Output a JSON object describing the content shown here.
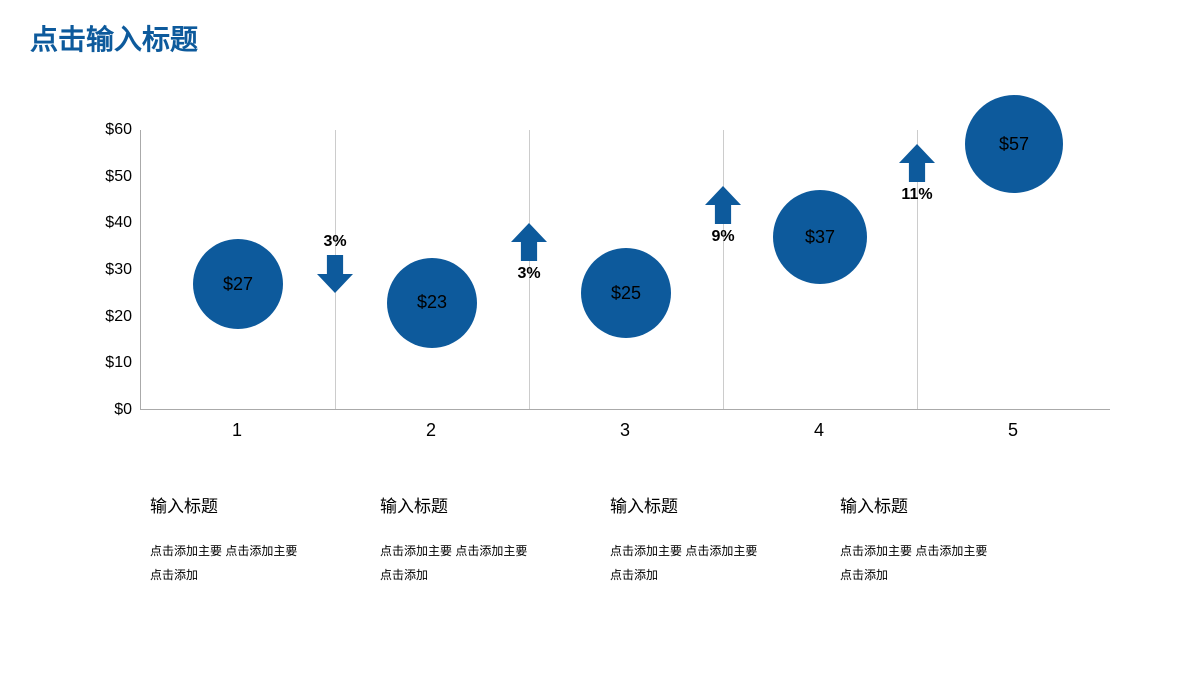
{
  "title": "点击输入标题",
  "title_color": "#0d5a9c",
  "chart": {
    "type": "bubble",
    "background_color": "#ffffff",
    "grid_color": "#cccccc",
    "axis_color": "#aaaaaa",
    "y_axis": {
      "min": 0,
      "max": 60,
      "step": 10,
      "prefix": "$",
      "ticks": [
        "$0",
        "$10",
        "$20",
        "$30",
        "$40",
        "$50",
        "$60"
      ]
    },
    "x_axis": {
      "categories": [
        "1",
        "2",
        "3",
        "4",
        "5"
      ]
    },
    "bubble_color": "#0d5a9c",
    "bubbles": [
      {
        "x": 1,
        "value": 27,
        "label": "$27",
        "radius": 45
      },
      {
        "x": 2,
        "value": 23,
        "label": "$23",
        "radius": 45
      },
      {
        "x": 3,
        "value": 25,
        "label": "$25",
        "radius": 45
      },
      {
        "x": 4,
        "value": 37,
        "label": "$37",
        "radius": 47
      },
      {
        "x": 5,
        "value": 57,
        "label": "$57",
        "radius": 49
      }
    ],
    "arrows": [
      {
        "between": 1,
        "direction": "down",
        "label": "3%",
        "label_pos": "above",
        "y": 38
      },
      {
        "between": 2,
        "direction": "up",
        "label": "3%",
        "label_pos": "below",
        "y": 40
      },
      {
        "between": 3,
        "direction": "up",
        "label": "9%",
        "label_pos": "below",
        "y": 48
      },
      {
        "between": 4,
        "direction": "up",
        "label": "11%",
        "label_pos": "below",
        "y": 57
      }
    ],
    "arrow_color": "#0d5a9c",
    "arrow_width": 36,
    "arrow_height": 38
  },
  "captions": [
    {
      "title": "输入标题",
      "body": "点击添加主要 点击添加主要 点击添加"
    },
    {
      "title": "输入标题",
      "body": "点击添加主要 点击添加主要 点击添加"
    },
    {
      "title": "输入标题",
      "body": "点击添加主要 点击添加主要 点击添加"
    },
    {
      "title": "输入标题",
      "body": "点击添加主要 点击添加主要 点击添加"
    }
  ]
}
